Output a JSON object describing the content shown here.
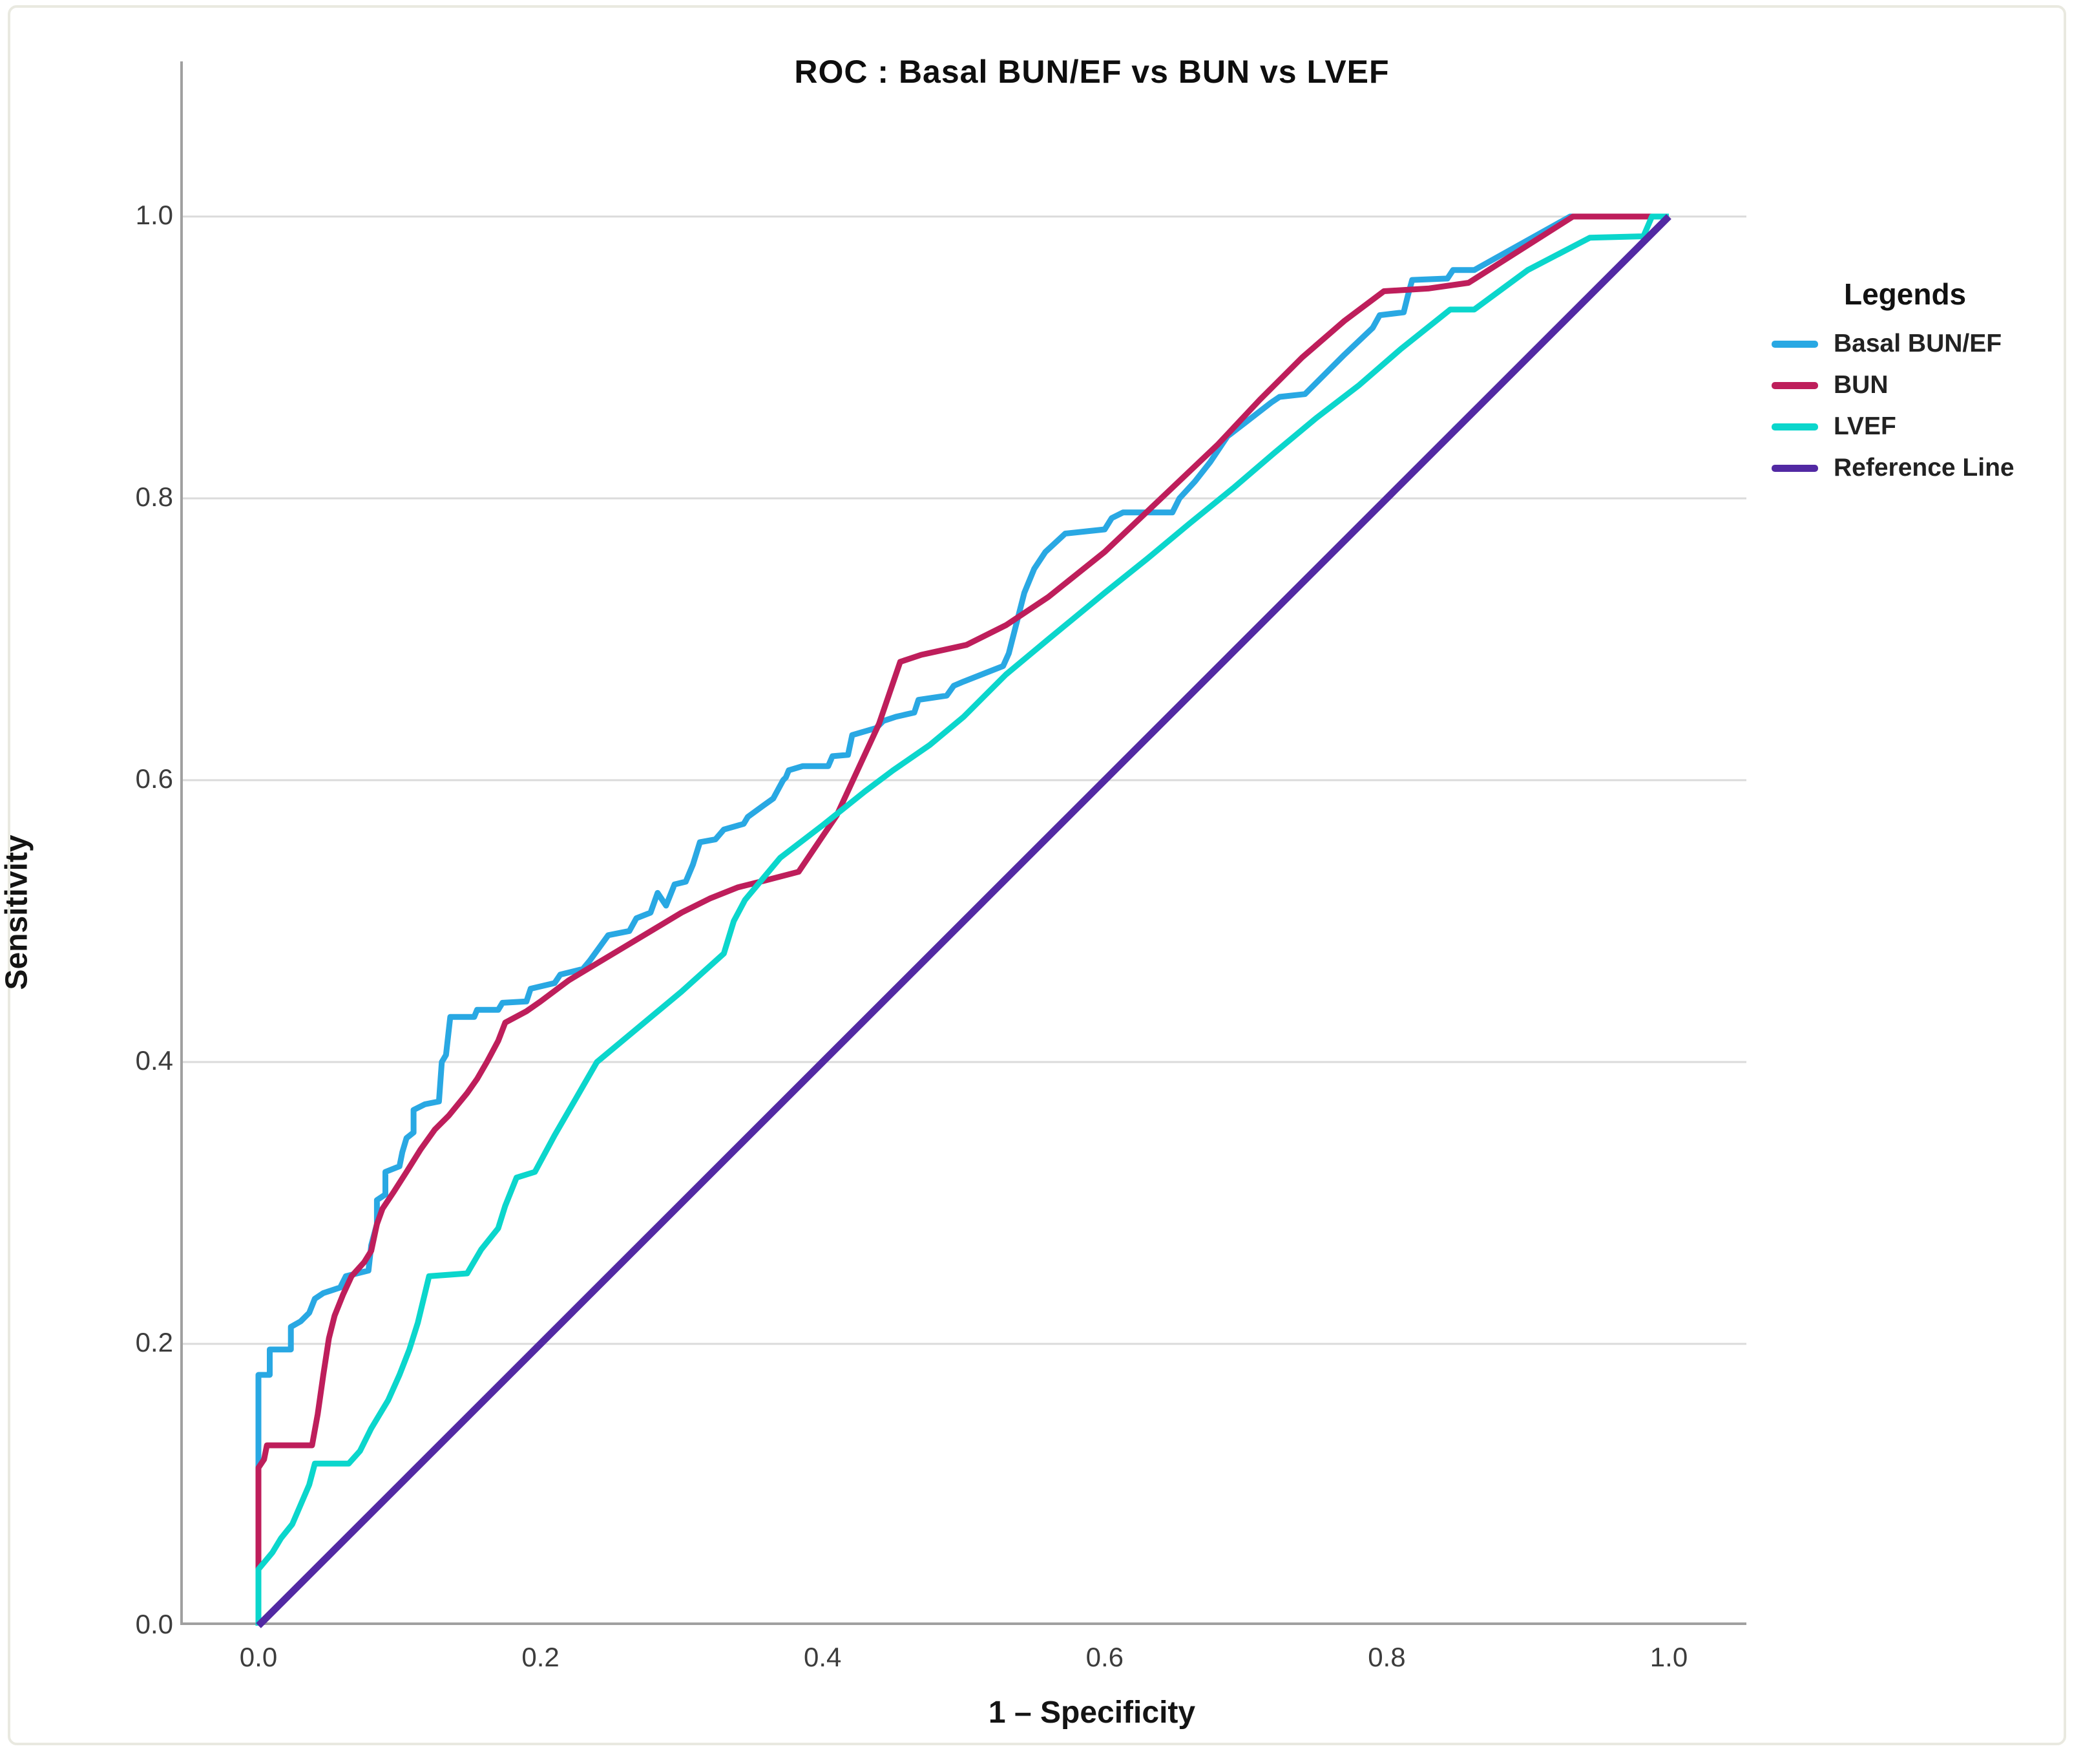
{
  "figure": {
    "title": "ROC : Basal BUN/EF vs BUN vs LVEF",
    "x_axis_label": "1 – Specificity",
    "y_axis_label": "Sensitivity",
    "legend_title": "Legends"
  },
  "style": {
    "grid_color": "#dbdbdb",
    "axis_color": "#a0a0a0",
    "curve_width": 9,
    "reference_width": 11
  },
  "chart_data": {
    "type": "line",
    "title": "ROC : Basal BUN/EF vs BUN vs LVEF",
    "xlabel": "1 – Specificity",
    "ylabel": "Sensitivity",
    "xlim": [
      0,
      1
    ],
    "ylim": [
      0,
      1
    ],
    "x_ticks": [
      0.0,
      0.2,
      0.4,
      0.6,
      0.8,
      1.0
    ],
    "x_tick_labels": [
      "0.0",
      "0.2",
      "0.4",
      "0.6",
      "0.8",
      "1.0"
    ],
    "y_ticks": [
      0.0,
      0.2,
      0.4,
      0.6,
      0.8,
      1.0
    ],
    "y_tick_labels": [
      "0.0",
      "0.2",
      "0.4",
      "0.6",
      "0.8",
      "1.0"
    ],
    "grid": "horizontal",
    "legend_position": "right",
    "series": [
      {
        "name": "Basal BUN/EF",
        "color": "#29a8e3",
        "points": [
          [
            0,
            0
          ],
          [
            0,
            0.178
          ],
          [
            0.008,
            0.178
          ],
          [
            0.008,
            0.196
          ],
          [
            0.023,
            0.196
          ],
          [
            0.023,
            0.212
          ],
          [
            0.03,
            0.216
          ],
          [
            0.036,
            0.222
          ],
          [
            0.04,
            0.232
          ],
          [
            0.046,
            0.236
          ],
          [
            0.058,
            0.24
          ],
          [
            0.062,
            0.248
          ],
          [
            0.078,
            0.252
          ],
          [
            0.08,
            0.27
          ],
          [
            0.084,
            0.285
          ],
          [
            0.084,
            0.302
          ],
          [
            0.09,
            0.306
          ],
          [
            0.09,
            0.322
          ],
          [
            0.1,
            0.326
          ],
          [
            0.102,
            0.336
          ],
          [
            0.105,
            0.346
          ],
          [
            0.11,
            0.35
          ],
          [
            0.11,
            0.366
          ],
          [
            0.118,
            0.37
          ],
          [
            0.128,
            0.372
          ],
          [
            0.13,
            0.4
          ],
          [
            0.133,
            0.405
          ],
          [
            0.136,
            0.432
          ],
          [
            0.153,
            0.432
          ],
          [
            0.155,
            0.437
          ],
          [
            0.17,
            0.437
          ],
          [
            0.173,
            0.442
          ],
          [
            0.19,
            0.443
          ],
          [
            0.193,
            0.452
          ],
          [
            0.21,
            0.456
          ],
          [
            0.214,
            0.462
          ],
          [
            0.23,
            0.466
          ],
          [
            0.235,
            0.472
          ],
          [
            0.248,
            0.49
          ],
          [
            0.263,
            0.493
          ],
          [
            0.268,
            0.502
          ],
          [
            0.278,
            0.506
          ],
          [
            0.283,
            0.52
          ],
          [
            0.289,
            0.511
          ],
          [
            0.295,
            0.526
          ],
          [
            0.303,
            0.528
          ],
          [
            0.308,
            0.54
          ],
          [
            0.313,
            0.556
          ],
          [
            0.324,
            0.558
          ],
          [
            0.33,
            0.565
          ],
          [
            0.344,
            0.569
          ],
          [
            0.347,
            0.574
          ],
          [
            0.358,
            0.582
          ],
          [
            0.365,
            0.587
          ],
          [
            0.372,
            0.6
          ],
          [
            0.374,
            0.602
          ],
          [
            0.376,
            0.607
          ],
          [
            0.386,
            0.61
          ],
          [
            0.404,
            0.61
          ],
          [
            0.407,
            0.617
          ],
          [
            0.418,
            0.618
          ],
          [
            0.421,
            0.632
          ],
          [
            0.438,
            0.637
          ],
          [
            0.443,
            0.642
          ],
          [
            0.452,
            0.645
          ],
          [
            0.465,
            0.648
          ],
          [
            0.468,
            0.657
          ],
          [
            0.488,
            0.66
          ],
          [
            0.493,
            0.667
          ],
          [
            0.5,
            0.67
          ],
          [
            0.528,
            0.681
          ],
          [
            0.532,
            0.69
          ],
          [
            0.543,
            0.733
          ],
          [
            0.55,
            0.75
          ],
          [
            0.558,
            0.762
          ],
          [
            0.572,
            0.775
          ],
          [
            0.6,
            0.778
          ],
          [
            0.605,
            0.786
          ],
          [
            0.613,
            0.79
          ],
          [
            0.648,
            0.79
          ],
          [
            0.653,
            0.8
          ],
          [
            0.664,
            0.812
          ],
          [
            0.675,
            0.826
          ],
          [
            0.687,
            0.844
          ],
          [
            0.7,
            0.854
          ],
          [
            0.718,
            0.868
          ],
          [
            0.724,
            0.872
          ],
          [
            0.742,
            0.874
          ],
          [
            0.746,
            0.878
          ],
          [
            0.77,
            0.902
          ],
          [
            0.79,
            0.921
          ],
          [
            0.795,
            0.93
          ],
          [
            0.812,
            0.932
          ],
          [
            0.815,
            0.944
          ],
          [
            0.818,
            0.955
          ],
          [
            0.843,
            0.956
          ],
          [
            0.847,
            0.962
          ],
          [
            0.862,
            0.962
          ],
          [
            0.93,
            1
          ],
          [
            1,
            1
          ]
        ]
      },
      {
        "name": "BUN",
        "color": "#be1e5b",
        "points": [
          [
            0,
            0
          ],
          [
            0,
            0.112
          ],
          [
            0.004,
            0.118
          ],
          [
            0.006,
            0.128
          ],
          [
            0.038,
            0.128
          ],
          [
            0.042,
            0.15
          ],
          [
            0.046,
            0.178
          ],
          [
            0.05,
            0.204
          ],
          [
            0.054,
            0.22
          ],
          [
            0.06,
            0.235
          ],
          [
            0.066,
            0.248
          ],
          [
            0.075,
            0.258
          ],
          [
            0.08,
            0.266
          ],
          [
            0.084,
            0.285
          ],
          [
            0.088,
            0.296
          ],
          [
            0.096,
            0.308
          ],
          [
            0.105,
            0.322
          ],
          [
            0.115,
            0.338
          ],
          [
            0.125,
            0.352
          ],
          [
            0.135,
            0.362
          ],
          [
            0.148,
            0.378
          ],
          [
            0.155,
            0.388
          ],
          [
            0.162,
            0.4
          ],
          [
            0.17,
            0.415
          ],
          [
            0.175,
            0.428
          ],
          [
            0.19,
            0.436
          ],
          [
            0.2,
            0.443
          ],
          [
            0.22,
            0.458
          ],
          [
            0.25,
            0.476
          ],
          [
            0.28,
            0.494
          ],
          [
            0.3,
            0.506
          ],
          [
            0.32,
            0.516
          ],
          [
            0.34,
            0.524
          ],
          [
            0.36,
            0.529
          ],
          [
            0.383,
            0.535
          ],
          [
            0.41,
            0.575
          ],
          [
            0.44,
            0.64
          ],
          [
            0.455,
            0.684
          ],
          [
            0.47,
            0.689
          ],
          [
            0.502,
            0.696
          ],
          [
            0.53,
            0.71
          ],
          [
            0.56,
            0.73
          ],
          [
            0.6,
            0.762
          ],
          [
            0.64,
            0.8
          ],
          [
            0.68,
            0.838
          ],
          [
            0.71,
            0.87
          ],
          [
            0.74,
            0.9
          ],
          [
            0.77,
            0.926
          ],
          [
            0.798,
            0.947
          ],
          [
            0.83,
            0.949
          ],
          [
            0.858,
            0.953
          ],
          [
            0.932,
            1
          ],
          [
            1,
            1
          ]
        ]
      },
      {
        "name": "LVEF",
        "color": "#0bd6cc",
        "points": [
          [
            0,
            0
          ],
          [
            0,
            0.04
          ],
          [
            0.01,
            0.052
          ],
          [
            0.016,
            0.062
          ],
          [
            0.024,
            0.072
          ],
          [
            0.03,
            0.086
          ],
          [
            0.036,
            0.1
          ],
          [
            0.04,
            0.115
          ],
          [
            0.064,
            0.115
          ],
          [
            0.072,
            0.124
          ],
          [
            0.08,
            0.14
          ],
          [
            0.092,
            0.16
          ],
          [
            0.1,
            0.178
          ],
          [
            0.107,
            0.196
          ],
          [
            0.113,
            0.215
          ],
          [
            0.121,
            0.248
          ],
          [
            0.148,
            0.25
          ],
          [
            0.158,
            0.267
          ],
          [
            0.17,
            0.282
          ],
          [
            0.175,
            0.298
          ],
          [
            0.183,
            0.318
          ],
          [
            0.196,
            0.322
          ],
          [
            0.21,
            0.348
          ],
          [
            0.225,
            0.374
          ],
          [
            0.24,
            0.4
          ],
          [
            0.27,
            0.425
          ],
          [
            0.3,
            0.45
          ],
          [
            0.33,
            0.477
          ],
          [
            0.337,
            0.5
          ],
          [
            0.345,
            0.515
          ],
          [
            0.37,
            0.545
          ],
          [
            0.4,
            0.568
          ],
          [
            0.43,
            0.592
          ],
          [
            0.45,
            0.607
          ],
          [
            0.476,
            0.625
          ],
          [
            0.5,
            0.645
          ],
          [
            0.53,
            0.675
          ],
          [
            0.56,
            0.7
          ],
          [
            0.6,
            0.733
          ],
          [
            0.63,
            0.757
          ],
          [
            0.66,
            0.782
          ],
          [
            0.692,
            0.808
          ],
          [
            0.72,
            0.832
          ],
          [
            0.75,
            0.857
          ],
          [
            0.78,
            0.88
          ],
          [
            0.81,
            0.906
          ],
          [
            0.84,
            0.93
          ],
          [
            0.845,
            0.934
          ],
          [
            0.862,
            0.934
          ],
          [
            0.9,
            0.962
          ],
          [
            0.944,
            0.985
          ],
          [
            0.982,
            0.986
          ],
          [
            0.988,
            1
          ],
          [
            1,
            1
          ]
        ]
      },
      {
        "name": "Reference Line",
        "color": "#5229a3",
        "points": [
          [
            0,
            0
          ],
          [
            1,
            1
          ]
        ]
      }
    ]
  }
}
